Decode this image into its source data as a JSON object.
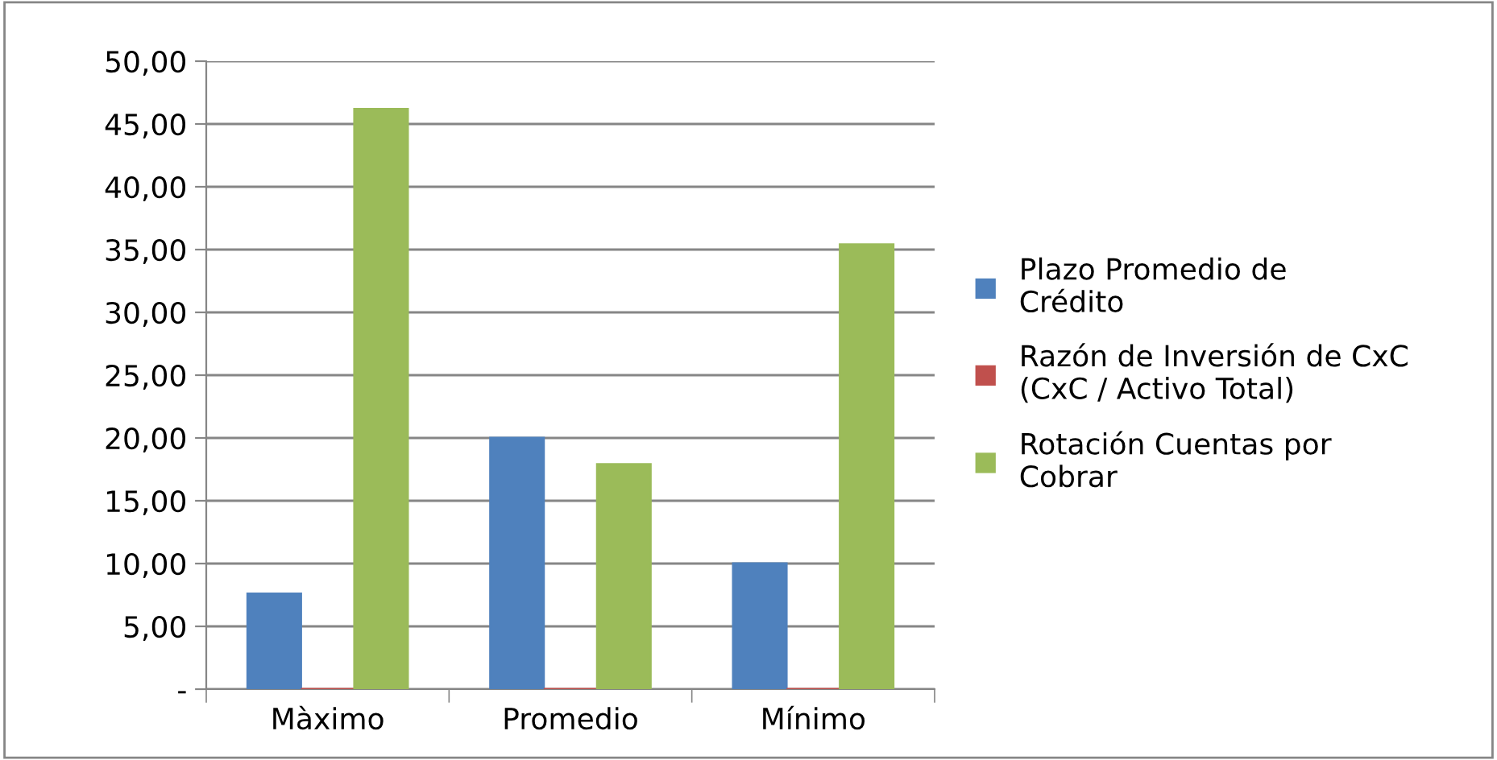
{
  "chart_data": {
    "type": "bar",
    "categories": [
      "Màximo",
      "Promedio",
      "Mínimo"
    ],
    "series": [
      {
        "name": "Plazo Promedio de\nCrédito",
        "color": "#4f81bd",
        "values": [
          7.6,
          20.0,
          10.0
        ]
      },
      {
        "name": "Razón de Inversión de CxC\n(CxC / Activo Total)",
        "color": "#c0504d",
        "values": [
          0,
          0,
          0
        ]
      },
      {
        "name": "Rotación Cuentas por\nCobrar",
        "color": "#9bbb59",
        "values": [
          46.2,
          17.9,
          35.4
        ]
      }
    ],
    "ylim": [
      0,
      50
    ],
    "yticks": [
      {
        "value": 0,
        "label": "-"
      },
      {
        "value": 5,
        "label": "5,00"
      },
      {
        "value": 10,
        "label": "10,00"
      },
      {
        "value": 15,
        "label": "15,00"
      },
      {
        "value": 20,
        "label": "20,00"
      },
      {
        "value": 25,
        "label": "25,00"
      },
      {
        "value": 30,
        "label": "30,00"
      },
      {
        "value": 35,
        "label": "35,00"
      },
      {
        "value": 40,
        "label": "40,00"
      },
      {
        "value": 45,
        "label": "45,00"
      },
      {
        "value": 50,
        "label": "50,00"
      }
    ],
    "grid": "y",
    "legend": "right"
  }
}
